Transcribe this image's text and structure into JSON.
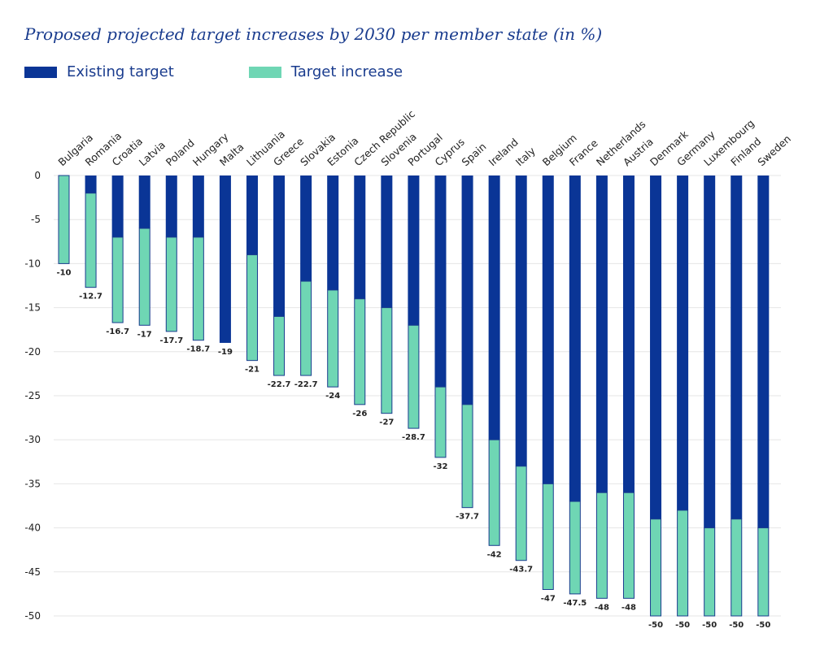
{
  "chart_data": {
    "type": "bar",
    "stacked": true,
    "title": "Proposed projected target increases by 2030 per member state (in %)",
    "xlabel": "",
    "ylabel": "",
    "ylim": [
      -50,
      0
    ],
    "yticks": [
      0,
      -5,
      -10,
      -15,
      -20,
      -25,
      -30,
      -35,
      -40,
      -45,
      -50
    ],
    "grid": true,
    "legend_position": "top-left",
    "categories": [
      "Bulgaria",
      "Romania",
      "Croatia",
      "Latvia",
      "Poland",
      "Hungary",
      "Malta",
      "Lithuania",
      "Greece",
      "Slovakia",
      "Estonia",
      "Czech Republic",
      "Slovenia",
      "Portugal",
      "Cyprus",
      "Spain",
      "Ireland",
      "Italy",
      "Belgium",
      "France",
      "Netherlands",
      "Austria",
      "Denmark",
      "Germany",
      "Luxembourg",
      "Finland",
      "Sweden"
    ],
    "series": [
      {
        "name": "Existing target",
        "color": "#0a3596",
        "values": [
          0,
          -2,
          -7,
          -6,
          -7,
          -7,
          -19,
          -9,
          -16,
          -12,
          -13,
          -14,
          -15,
          -17,
          -24,
          -26,
          -30,
          -33,
          -35,
          -37,
          -36,
          -36,
          -39,
          -38,
          -40,
          -39,
          -40
        ]
      },
      {
        "name": "Target increase",
        "color": "#6fd6b4",
        "values": [
          -10,
          -10.7,
          -9.7,
          -11,
          -10.7,
          -11.7,
          0,
          -12,
          -6.7,
          -10.7,
          -11,
          -12,
          -12,
          -11.7,
          -8,
          -11.7,
          -12,
          -10.7,
          -12,
          -10.5,
          -12,
          -12,
          -11,
          -12,
          -10,
          -11,
          -10
        ]
      }
    ],
    "totals": [
      -10,
      -12.7,
      -16.7,
      -17,
      -17.7,
      -18.7,
      -19,
      -21,
      -22.7,
      -22.7,
      -24,
      -26,
      -27,
      -28.7,
      -32,
      -37.7,
      -42,
      -43.7,
      -47,
      -47.5,
      -48,
      -48,
      -50,
      -50,
      -50,
      -50,
      -50
    ],
    "total_labels": [
      "-10",
      "-12.7",
      "-16.7",
      "-17",
      "-17.7",
      "-18.7",
      "-19",
      "-21",
      "-22.7",
      "-22.7",
      "-24",
      "-26",
      "-27",
      "-28.7",
      "-32",
      "-37.7",
      "-42",
      "-43.7",
      "-47",
      "-47.5",
      "-48",
      "-48",
      "-50",
      "-50",
      "-50",
      "-50",
      "-50"
    ]
  },
  "legend": {
    "existing_label": "Existing target",
    "increase_label": "Target increase"
  }
}
